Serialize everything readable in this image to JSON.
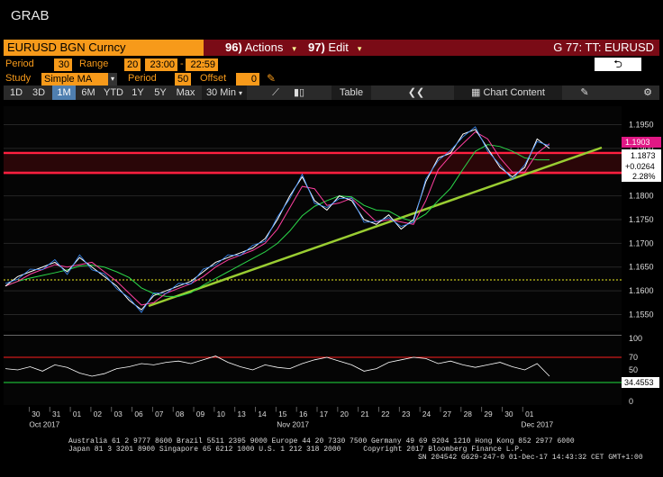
{
  "window_title": "GRAB",
  "security": "EURUSD BGN Curncy",
  "actions": {
    "num": "96)",
    "label": "Actions"
  },
  "edit": {
    "num": "97)",
    "label": "Edit"
  },
  "chart_title": "G 77: TT: EURUSD",
  "params": {
    "period_label": "Period",
    "period": "30",
    "range_label": "Range",
    "range_start_day": "20",
    "range_start": "23:00",
    "range_end": "22:59",
    "study_label": "Study",
    "study": "Simple MA",
    "period2_label": "Period",
    "period2": "50",
    "offset_label": "Offset",
    "offset": "0"
  },
  "back_icon": "back-arrow-icon",
  "timeframes": [
    "1D",
    "3D",
    "1M",
    "6M",
    "YTD",
    "1Y",
    "5Y",
    "Max"
  ],
  "selected_timeframe": "1M",
  "interval": "30 Min",
  "table_label": "Table",
  "chart_content_label": "Chart Content",
  "price_axis": [
    "1.1950",
    "1.1900",
    "1.1850",
    "1.1800",
    "1.1750",
    "1.1700",
    "1.1650",
    "1.1600",
    "1.1550"
  ],
  "price_tags": {
    "last": "1.1903",
    "v1": "1.1873",
    "change": "+0.0264",
    "pct": "2.28%"
  },
  "rsi_axis": [
    "100",
    "70",
    "50",
    "30",
    "0"
  ],
  "rsi_value": "34.4553",
  "dates": [
    "30",
    "31",
    "01",
    "02",
    "03",
    "06",
    "07",
    "08",
    "09",
    "10",
    "13",
    "14",
    "15",
    "16",
    "17",
    "20",
    "21",
    "22",
    "23",
    "24",
    "27",
    "28",
    "29",
    "30",
    "01"
  ],
  "months": {
    "oct": "Oct 2017",
    "nov": "Nov 2017",
    "dec": "Dec 2017"
  },
  "footer": {
    "line1": "Australia 61 2 9777 8600 Brazil 5511 2395 9000 Europe 44 20 7330 7500 Germany 49 69 9204 1210 Hong Kong 852 2977 6000",
    "line2a": "Japan 81 3 3201 8900        Singapore 65 6212 1000       U.S. 1 212 318 2000",
    "line2b": "Copyright 2017 Bloomberg Finance L.P.",
    "line3": "SN 204542 G629-247-0 01-Dec-17 14:43:32 CET  GMT+1:00"
  },
  "chart_data": {
    "type": "line",
    "y_range": [
      1.153,
      1.197
    ],
    "price_path": [
      1.161,
      1.163,
      1.164,
      1.165,
      1.166,
      1.164,
      1.167,
      1.165,
      1.163,
      1.161,
      1.158,
      1.156,
      1.159,
      1.16,
      1.161,
      1.162,
      1.164,
      1.166,
      1.167,
      1.168,
      1.169,
      1.171,
      1.175,
      1.18,
      1.184,
      1.179,
      1.177,
      1.18,
      1.179,
      1.175,
      1.174,
      1.176,
      1.173,
      1.175,
      1.183,
      1.188,
      1.189,
      1.193,
      1.194,
      1.19,
      1.186,
      1.184,
      1.186,
      1.192,
      1.19
    ],
    "rsi_path": [
      52,
      50,
      55,
      48,
      58,
      54,
      45,
      40,
      44,
      52,
      55,
      60,
      58,
      62,
      64,
      60,
      66,
      72,
      62,
      55,
      50,
      58,
      54,
      52,
      60,
      66,
      70,
      64,
      58,
      48,
      52,
      62,
      66,
      70,
      68,
      60,
      64,
      58,
      54,
      58,
      62,
      55,
      50,
      60,
      40
    ]
  }
}
